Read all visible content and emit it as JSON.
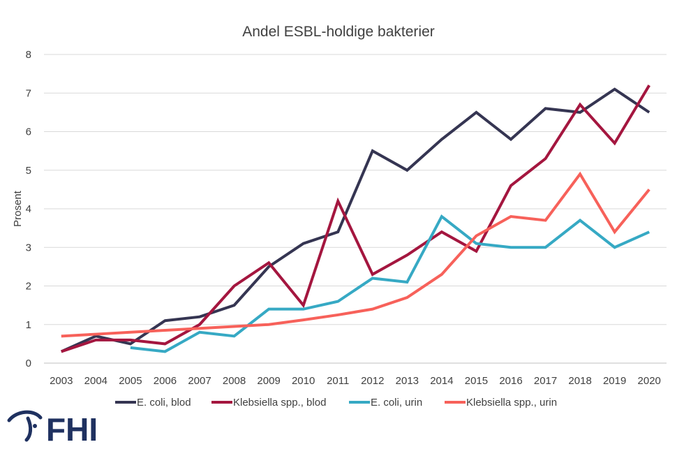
{
  "chart_data": {
    "type": "line",
    "title": "Andel ESBL-holdige bakterier",
    "xlabel": "",
    "ylabel": "Prosent",
    "ylim": [
      0,
      8
    ],
    "yticks": [
      "0",
      "1",
      "2",
      "3",
      "4",
      "5",
      "6",
      "7",
      "8"
    ],
    "grid": true,
    "legend_position": "bottom",
    "categories": [
      "2003",
      "2004",
      "2005",
      "2006",
      "2007",
      "2008",
      "2009",
      "2010",
      "2011",
      "2012",
      "2013",
      "2014",
      "2015",
      "2016",
      "2017",
      "2018",
      "2019",
      "2020"
    ],
    "series": [
      {
        "name": "E. coli, blod",
        "color": "#353552",
        "values": [
          0.3,
          0.7,
          0.5,
          1.1,
          1.2,
          1.5,
          2.5,
          3.1,
          3.4,
          5.5,
          5.0,
          5.8,
          6.5,
          5.8,
          6.6,
          6.5,
          7.1,
          6.5
        ]
      },
      {
        "name": "Klebsiella spp., blod",
        "color": "#A4163F",
        "values": [
          0.3,
          0.6,
          0.6,
          0.5,
          1.0,
          2.0,
          2.6,
          1.5,
          4.2,
          2.3,
          2.8,
          3.4,
          2.9,
          4.6,
          5.3,
          6.7,
          5.7,
          7.2
        ]
      },
      {
        "name": "E. coli, urin",
        "color": "#36A9C4",
        "values": [
          null,
          null,
          0.4,
          0.3,
          0.8,
          0.7,
          1.4,
          1.4,
          1.6,
          2.2,
          2.1,
          3.8,
          3.1,
          3.0,
          3.0,
          3.7,
          3.0,
          3.4
        ]
      },
      {
        "name": "Klebsiella spp., urin",
        "color": "#F7615A",
        "values": [
          0.7,
          0.75,
          0.8,
          0.85,
          0.9,
          0.95,
          1.0,
          1.12,
          1.25,
          1.4,
          1.7,
          2.3,
          3.3,
          3.8,
          3.7,
          4.9,
          3.4,
          4.5
        ]
      }
    ]
  },
  "logo": {
    "text": "FHI",
    "color": "#1F3160"
  }
}
